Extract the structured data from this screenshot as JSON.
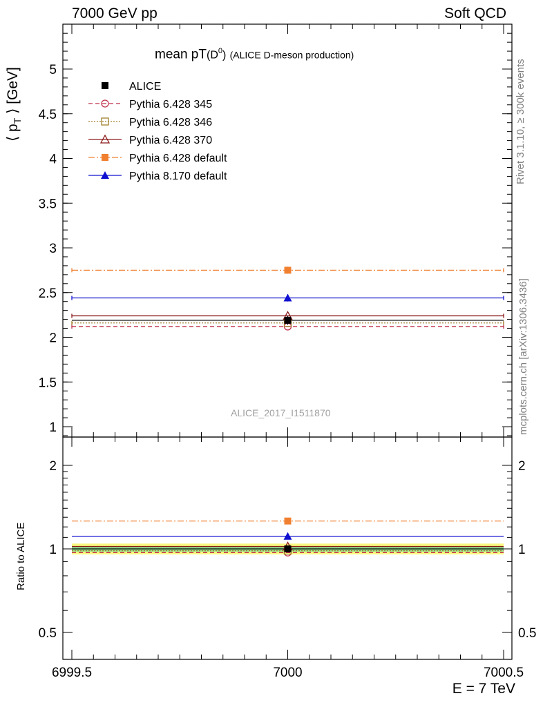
{
  "header": {
    "left": "7000 GeV pp",
    "right": "Soft QCD"
  },
  "side_text": {
    "rivet": "Rivet 3.1.10, ≥ 300k events",
    "mcplots": "mcplots.cern.ch [arXiv:1306.3436]"
  },
  "analysis_tag": "ALICE_2017_I1511870",
  "colors": {
    "alice": "#000000",
    "py345": "#c0304a",
    "py346": "#a08030",
    "py370": "#8b1a1a",
    "py6def": "#f08030",
    "py8def": "#1010d0",
    "band_yellow": "#f8f880",
    "band_green": "#90e090"
  },
  "chart_data": [
    {
      "type": "line",
      "title_main": "mean pT",
      "title_sub": "(D",
      "title_sup": "0",
      "title_close": ")",
      "title_rest": "(ALICE D-meson production)",
      "ylabel": "⟨ p",
      "ylabel_sub": "T",
      "ylabel_unit": "⟩ [GeV]",
      "xlim": [
        6999.5,
        7000.5
      ],
      "ylim": [
        0.88,
        5.5
      ],
      "y_ticks": [
        "1",
        "1.5",
        "2",
        "2.5",
        "3",
        "3.5",
        "4",
        "4.5",
        "5"
      ],
      "y_tick_values": [
        1,
        1.5,
        2,
        2.5,
        3,
        3.5,
        4,
        4.5,
        5
      ],
      "legend": "top-left",
      "series": [
        {
          "name": "ALICE",
          "x": [
            7000
          ],
          "values": [
            2.19
          ],
          "err": [
            0.05
          ],
          "style": "data",
          "marker": "square-filled",
          "color_key": "alice"
        },
        {
          "name": "Pythia 6.428 345",
          "x": [
            7000
          ],
          "values": [
            2.12
          ],
          "style": "dashed",
          "marker": "circle-open",
          "color_key": "py345"
        },
        {
          "name": "Pythia 6.428 346",
          "x": [
            7000
          ],
          "values": [
            2.16
          ],
          "style": "dotted",
          "marker": "square-open",
          "color_key": "py346"
        },
        {
          "name": "Pythia 6.428 370",
          "x": [
            7000
          ],
          "values": [
            2.24
          ],
          "style": "solid",
          "marker": "triangle-open",
          "color_key": "py370"
        },
        {
          "name": "Pythia 6.428 default",
          "x": [
            7000
          ],
          "values": [
            2.75
          ],
          "err": [
            0.04
          ],
          "style": "dashdot",
          "marker": "square-filled",
          "color_key": "py6def"
        },
        {
          "name": "Pythia 8.170 default",
          "x": [
            7000
          ],
          "values": [
            2.44
          ],
          "err": [
            0.04
          ],
          "style": "solid",
          "marker": "triangle-filled",
          "color_key": "py8def"
        }
      ]
    },
    {
      "type": "line",
      "ylabel": "Ratio to ALICE",
      "xlabel": "E = 7 TeV",
      "xlim": [
        6999.5,
        7000.5
      ],
      "ylim": [
        0.35,
        2.3
      ],
      "scale": "log",
      "x_ticks": [
        "6999.5",
        "7000",
        "7000.5"
      ],
      "x_tick_values": [
        6999.5,
        7000,
        7000.5
      ],
      "y_ticks": [
        "0.5",
        "1",
        "2"
      ],
      "y_tick_values": [
        0.5,
        1,
        2
      ],
      "band_yellow": [
        0.955,
        1.045
      ],
      "band_green": [
        0.978,
        1.022
      ],
      "series": [
        {
          "name": "ALICE",
          "values": [
            1.0
          ]
        },
        {
          "name": "Pythia 6.428 345",
          "values": [
            0.97
          ]
        },
        {
          "name": "Pythia 6.428 346",
          "values": [
            0.985
          ]
        },
        {
          "name": "Pythia 6.428 370",
          "values": [
            1.02
          ]
        },
        {
          "name": "Pythia 6.428 default",
          "values": [
            1.26
          ]
        },
        {
          "name": "Pythia 8.170 default",
          "values": [
            1.11
          ]
        }
      ]
    }
  ]
}
